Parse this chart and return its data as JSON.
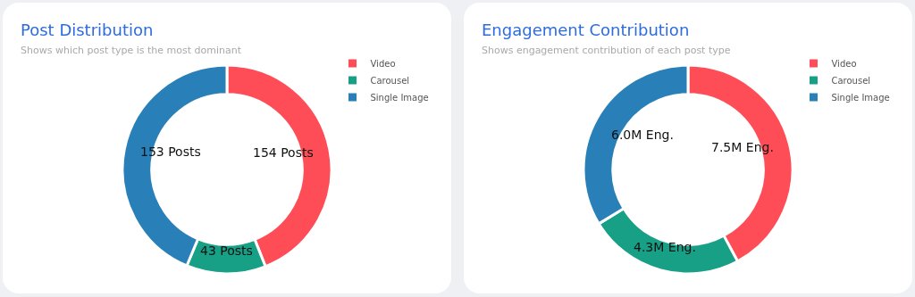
{
  "chart_data": [
    {
      "type": "donut",
      "title": "Post Distribution",
      "subtitle": "Shows which post type is the most dominant",
      "categories": [
        "Video",
        "Carousel",
        "Single Image"
      ],
      "values": [
        154,
        43,
        153
      ],
      "colors": [
        "#ff4d57",
        "#17a085",
        "#2980b9"
      ],
      "value_labels": [
        "154 Posts",
        "43 Posts",
        "153 Posts"
      ],
      "legend": "top right"
    },
    {
      "type": "donut",
      "title": "Engagement Contribution",
      "subtitle": "Shows engagement contribution of each post type",
      "categories": [
        "Video",
        "Carousel",
        "Single Image"
      ],
      "values": [
        7.5,
        4.3,
        6.0
      ],
      "colors": [
        "#ff4d57",
        "#17a085",
        "#2980b9"
      ],
      "value_labels": [
        "7.5M Eng.",
        "4.3M Eng.",
        "6.0M Eng."
      ],
      "legend": "top right"
    }
  ]
}
